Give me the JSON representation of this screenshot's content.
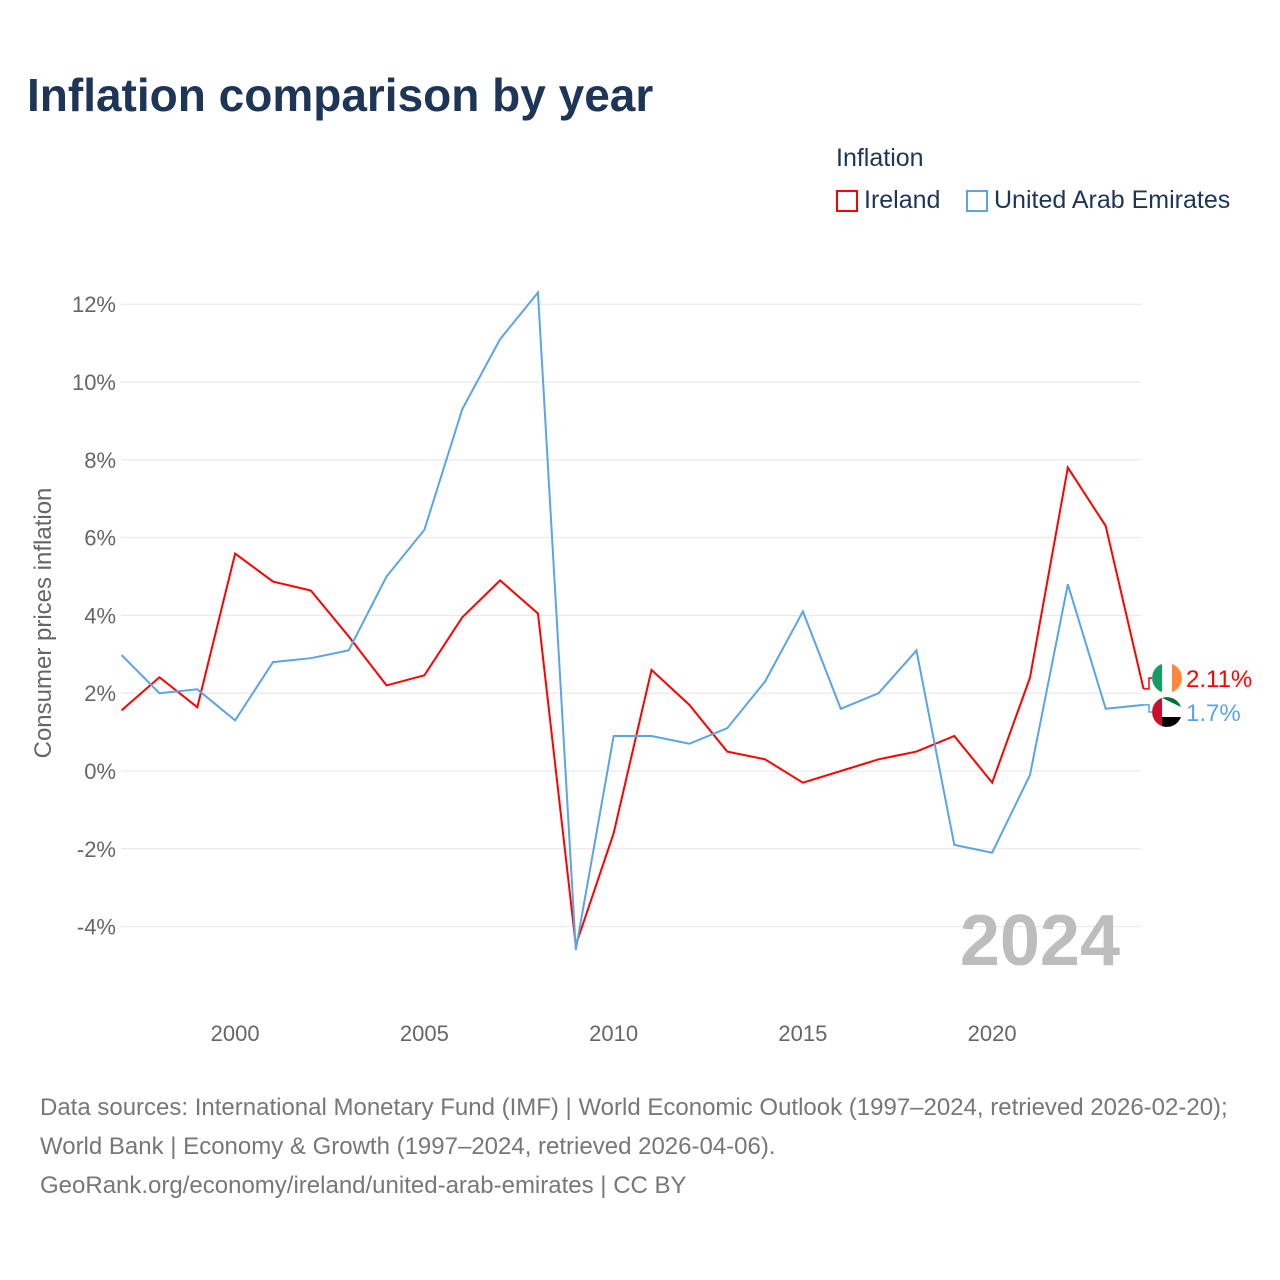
{
  "title": "Inflation comparison by year",
  "legend": {
    "title": "Inflation",
    "items": [
      "Ireland",
      "United Arab Emirates"
    ]
  },
  "footer": {
    "line1": "Data sources: International Monetary Fund (IMF) | World Economic Outlook (1997–2024, retrieved 2026-02-20); World Bank | Economy & Growth (1997–2024, retrieved 2026-04-06).",
    "line2": "GeoRank.org/economy/ireland/united-arab-emirates | CC BY"
  },
  "chart_data": {
    "type": "line",
    "title": "Inflation comparison by year",
    "ylabel": "Consumer prices inflation",
    "xlabel": "",
    "year_watermark": "2024",
    "ylim": [
      -5.5,
      13
    ],
    "xlim": [
      1997,
      2024
    ],
    "yticks": [
      -4,
      -2,
      0,
      2,
      4,
      6,
      8,
      10,
      12
    ],
    "ytick_labels": [
      "-4%",
      "-2%",
      "0%",
      "2%",
      "4%",
      "6%",
      "8%",
      "10%",
      "12%"
    ],
    "xticks": [
      2000,
      2005,
      2010,
      2015,
      2020
    ],
    "xtick_labels": [
      "2000",
      "2005",
      "2010",
      "2015",
      "2020"
    ],
    "x": [
      1997,
      1998,
      1999,
      2000,
      2001,
      2002,
      2003,
      2004,
      2005,
      2006,
      2007,
      2008,
      2009,
      2010,
      2011,
      2012,
      2013,
      2014,
      2015,
      2016,
      2017,
      2018,
      2019,
      2020,
      2021,
      2022,
      2023,
      2024
    ],
    "series": [
      {
        "name": "Ireland",
        "color": "#ff0000",
        "end_label": "2.11%",
        "values": [
          1.56,
          2.41,
          1.64,
          5.59,
          4.87,
          4.64,
          3.46,
          2.2,
          2.46,
          3.95,
          4.9,
          4.05,
          -4.48,
          -1.6,
          2.6,
          1.7,
          0.5,
          0.3,
          -0.3,
          0.0,
          0.3,
          0.5,
          0.9,
          -0.3,
          2.4,
          7.8,
          6.3,
          2.11
        ]
      },
      {
        "name": "United Arab Emirates",
        "color": "#5ba4e5",
        "end_label": "1.7%",
        "values": [
          2.98,
          2.0,
          2.1,
          1.3,
          2.8,
          2.9,
          3.1,
          5.0,
          6.2,
          9.3,
          11.1,
          12.3,
          -4.6,
          0.9,
          0.9,
          0.7,
          1.1,
          2.3,
          4.1,
          1.6,
          2.0,
          3.1,
          -1.9,
          -2.1,
          -0.1,
          4.8,
          1.6,
          1.7
        ]
      }
    ]
  }
}
